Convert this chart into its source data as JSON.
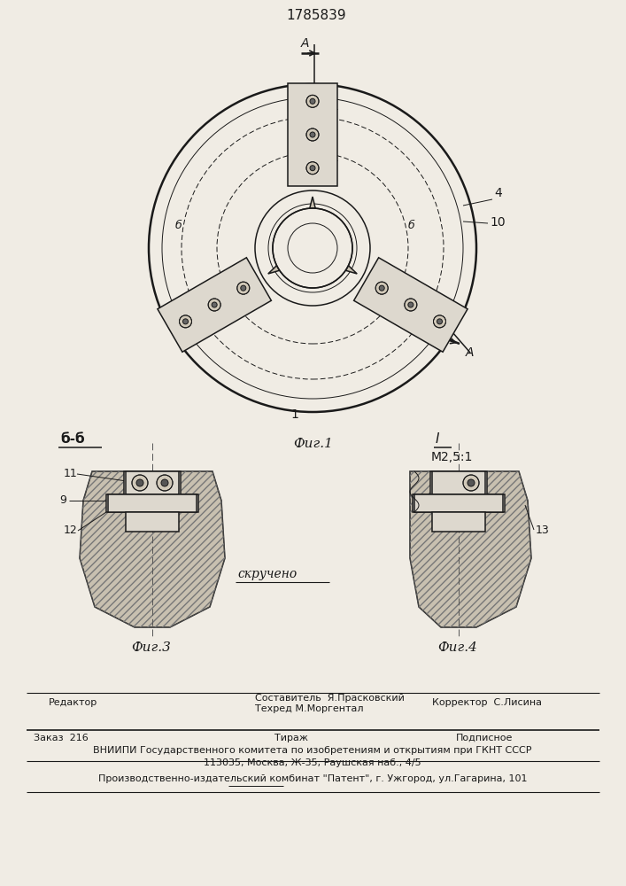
{
  "patent_number": "1785839",
  "background_color": "#f0ece4",
  "line_color": "#1a1a1a",
  "fig1_label": "Фиг.1",
  "fig3_label": "Фиг.3",
  "fig4_label": "Фиг.4",
  "section_bb": "б-б",
  "section_I": "I",
  "scale": "М2,5:1",
  "label_1": "1",
  "label_4": "4",
  "label_10": "10",
  "label_9": "9",
  "label_11": "11",
  "label_12": "12",
  "label_13": "13",
  "annotation_skrucheno": "скручено",
  "footer_editor": "Редактор",
  "footer_compiler": "Составитель  Я.Прасковский",
  "footer_techred": "Техред М.Моргентал",
  "footer_corrector": "Корректор  С.Лисина",
  "footer_order": "Заказ  216",
  "footer_tirazh": "Тираж",
  "footer_podpisnoe": "Подписное",
  "footer_line3": "ВНИИПИ Государственного комитета по изобретениям и открытиям при ГКНТ СССР",
  "footer_line4": "113035, Москва, Ж-35, Раушская наб., 4/5",
  "footer_line5": "Производственно-издательский комбинат \"Патент\", г. Ужгород, ул.Гагарина, 101"
}
